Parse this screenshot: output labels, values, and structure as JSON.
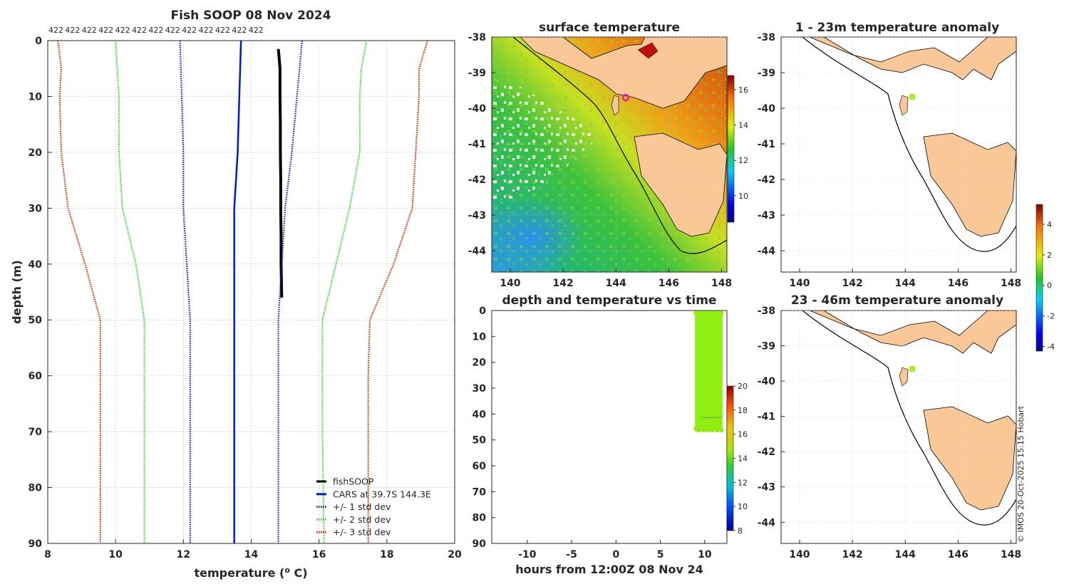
{
  "figure": {
    "copyright": "© IMOS 20-Oct-2025 15:15 Hobart"
  },
  "chart_data": [
    {
      "type": "line",
      "id": "profile",
      "title": "Fish SOOP 08 Nov 2024",
      "xlabel": "temperature (",
      "xlabel_sup": "o",
      "xlabel_tail": " C)",
      "ylabel": "depth (m)",
      "xlim": [
        8,
        20
      ],
      "ylim": [
        90,
        0
      ],
      "xticks": [
        8,
        10,
        12,
        14,
        16,
        18,
        20
      ],
      "yticks": [
        0,
        10,
        20,
        30,
        40,
        50,
        60,
        70,
        80,
        90
      ],
      "top_labels": [
        "422",
        "422",
        "422",
        "422",
        "422",
        "422",
        "422",
        "422",
        "422",
        "422",
        "422",
        "422",
        "422"
      ],
      "grid": true,
      "legend_position": "bottom-right",
      "series": [
        {
          "name": "fishSOOP",
          "color": "#000000",
          "style": "solid",
          "points": [
            [
              14.8,
              1.5
            ],
            [
              14.85,
              5
            ],
            [
              14.85,
              10
            ],
            [
              14.86,
              15
            ],
            [
              14.86,
              20
            ],
            [
              14.87,
              25
            ],
            [
              14.87,
              30
            ],
            [
              14.88,
              35
            ],
            [
              14.88,
              40
            ],
            [
              14.9,
              46
            ]
          ]
        },
        {
          "name": "CARS at 39.7S 144.3E",
          "color": "#0018d8",
          "style": "solid",
          "points": [
            [
              13.7,
              0
            ],
            [
              13.65,
              10
            ],
            [
              13.6,
              20
            ],
            [
              13.5,
              30
            ],
            [
              13.5,
              40
            ],
            [
              13.5,
              50
            ],
            [
              13.5,
              60
            ],
            [
              13.5,
              70
            ],
            [
              13.5,
              80
            ],
            [
              13.5,
              90
            ]
          ]
        },
        {
          "name": "+/- 1 std dev",
          "color": "#0018d8",
          "style": "dotted",
          "points": [
            [
              11.9,
              0
            ],
            [
              11.95,
              10
            ],
            [
              12.0,
              20
            ],
            [
              12.0,
              30
            ],
            [
              12.1,
              40
            ],
            [
              12.2,
              50
            ],
            [
              12.2,
              60
            ],
            [
              12.2,
              70
            ],
            [
              12.2,
              80
            ],
            [
              12.2,
              90
            ]
          ]
        },
        {
          "name": "+/- 1 std dev upper",
          "color": "#0018d8",
          "style": "dotted",
          "legend": false,
          "points": [
            [
              15.5,
              0
            ],
            [
              15.35,
              10
            ],
            [
              15.2,
              20
            ],
            [
              15.0,
              30
            ],
            [
              14.9,
              40
            ],
            [
              14.8,
              50
            ],
            [
              14.8,
              60
            ],
            [
              14.8,
              70
            ],
            [
              14.8,
              80
            ],
            [
              14.8,
              90
            ]
          ]
        },
        {
          "name": "+/- 2 std dev",
          "color": "#30d830",
          "style": "dotted",
          "points": [
            [
              10.0,
              0
            ],
            [
              10.1,
              10
            ],
            [
              10.1,
              20
            ],
            [
              10.2,
              30
            ],
            [
              10.6,
              40
            ],
            [
              10.85,
              50
            ],
            [
              10.85,
              60
            ],
            [
              10.85,
              70
            ],
            [
              10.85,
              80
            ],
            [
              10.85,
              90
            ]
          ]
        },
        {
          "name": "+/- 2 std dev upper",
          "color": "#30d830",
          "style": "dotted",
          "legend": false,
          "points": [
            [
              17.4,
              0
            ],
            [
              17.25,
              5
            ],
            [
              17.2,
              10
            ],
            [
              17.2,
              20
            ],
            [
              16.9,
              30
            ],
            [
              16.5,
              40
            ],
            [
              16.1,
              50
            ],
            [
              16.1,
              60
            ],
            [
              16.1,
              70
            ],
            [
              16.15,
              90
            ]
          ]
        },
        {
          "name": "+/- 3 std dev",
          "color": "#e02000",
          "style": "dotted",
          "points": [
            [
              8.3,
              0
            ],
            [
              8.4,
              5
            ],
            [
              8.35,
              10
            ],
            [
              8.4,
              20
            ],
            [
              8.6,
              30
            ],
            [
              9.1,
              40
            ],
            [
              9.55,
              50
            ],
            [
              9.55,
              60
            ],
            [
              9.55,
              70
            ],
            [
              9.55,
              80
            ],
            [
              9.55,
              90
            ]
          ]
        },
        {
          "name": "+/- 3 std dev upper",
          "color": "#e02000",
          "style": "dotted",
          "legend": false,
          "points": [
            [
              19.2,
              0
            ],
            [
              18.95,
              5
            ],
            [
              18.95,
              10
            ],
            [
              18.85,
              20
            ],
            [
              18.75,
              30
            ],
            [
              18.2,
              40
            ],
            [
              17.5,
              50
            ],
            [
              17.45,
              60
            ],
            [
              17.45,
              70
            ],
            [
              17.45,
              90
            ]
          ]
        }
      ]
    },
    {
      "type": "heatmap",
      "id": "sst",
      "title": "surface temperature",
      "xlim": [
        139.3,
        148.2
      ],
      "ylim": [
        -44.6,
        -38
      ],
      "xticks": [
        140,
        142,
        144,
        146,
        148
      ],
      "yticks": [
        -38,
        -39,
        -40,
        -41,
        -42,
        -43,
        -44
      ],
      "colorbar": {
        "min": 8.5,
        "max": 16.8,
        "ticks": [
          10,
          12,
          14,
          16
        ]
      },
      "marker": {
        "lon": 144.3,
        "lat": -39.7,
        "color": "#e020b0"
      }
    },
    {
      "type": "scatter",
      "id": "depth_time",
      "title": "depth and temperature vs time",
      "xlabel": "hours from 12:00Z 08 Nov 24",
      "xlim": [
        -14,
        12.5
      ],
      "ylim": [
        90,
        0
      ],
      "xticks": [
        -10,
        -5,
        0,
        5,
        10
      ],
      "yticks": [
        0,
        10,
        20,
        30,
        40,
        50,
        60,
        70,
        80,
        90
      ],
      "colorbar": {
        "min": 8,
        "max": 20,
        "ticks": [
          8,
          10,
          12,
          14,
          16,
          18,
          20
        ]
      },
      "points": {
        "x_range": [
          8.9,
          12.0
        ],
        "depth_range": [
          1,
          46
        ],
        "temperature": 14.9,
        "color": "#90ee10"
      }
    },
    {
      "type": "heatmap",
      "id": "anom_shallow",
      "title": "1 - 23m temperature anomaly",
      "xlim": [
        139.3,
        148.2
      ],
      "ylim": [
        -44.6,
        -38
      ],
      "xticks": [
        140,
        142,
        144,
        146,
        148
      ],
      "yticks": [
        -38,
        -39,
        -40,
        -41,
        -42,
        -43,
        -44
      ],
      "marker": {
        "lon": 144.3,
        "lat": -39.7,
        "color": "#aaf020"
      }
    },
    {
      "type": "heatmap",
      "id": "anom_deep",
      "title": "23 - 46m temperature anomaly",
      "xlim": [
        139.3,
        148.2
      ],
      "ylim": [
        -44.6,
        -38
      ],
      "xticks": [
        140,
        142,
        144,
        146,
        148
      ],
      "yticks": [
        -38,
        -39,
        -40,
        -41,
        -42,
        -43,
        -44
      ],
      "marker": {
        "lon": 144.3,
        "lat": -39.7,
        "color": "#aaf020"
      }
    },
    {
      "type": "colorbar",
      "id": "anomaly_colorbar",
      "min": -4.3,
      "max": 5.3,
      "ticks": [
        -4,
        -2,
        0,
        2,
        4
      ]
    }
  ]
}
